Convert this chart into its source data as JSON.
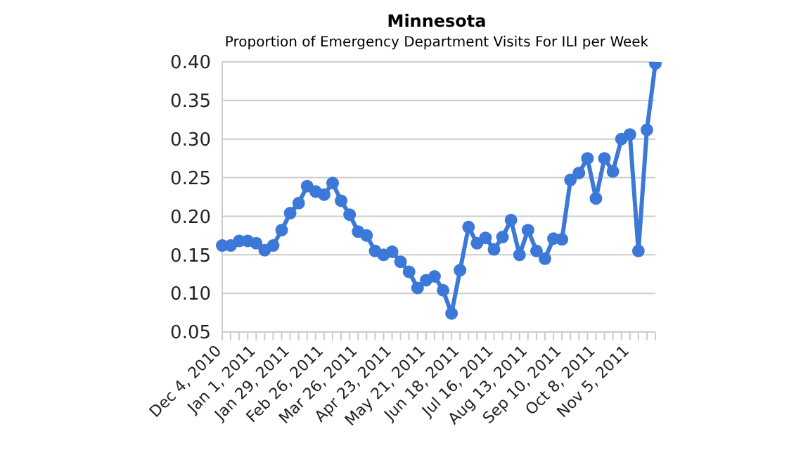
{
  "chart_data": {
    "type": "line",
    "title": "Minnesota",
    "subtitle": "Proportion of Emergency Department Visits For ILI per Week",
    "categories": [
      "Dec 4, 2010",
      null,
      null,
      null,
      "Jan 1, 2011",
      null,
      null,
      null,
      "Jan 29, 2011",
      null,
      null,
      null,
      "Feb 26, 2011",
      null,
      null,
      null,
      "Mar 26, 2011",
      null,
      null,
      null,
      "Apr 23, 2011",
      null,
      null,
      null,
      "May 21, 2011",
      null,
      null,
      null,
      "Jun 18, 2011",
      null,
      null,
      null,
      "Jul 16, 2011",
      null,
      null,
      null,
      "Aug 13, 2011",
      null,
      null,
      null,
      "Sep 10, 2011",
      null,
      null,
      null,
      "Oct 8, 2011",
      null,
      null,
      null,
      "Nov 5, 2011",
      null,
      null,
      null
    ],
    "series": [
      {
        "color": "#3c78d8",
        "values": [
          0.162,
          0.162,
          0.168,
          0.168,
          0.165,
          0.156,
          0.162,
          0.182,
          0.204,
          0.217,
          0.239,
          0.232,
          0.228,
          0.243,
          0.22,
          0.202,
          0.18,
          0.175,
          0.155,
          0.15,
          0.154,
          0.141,
          0.128,
          0.107,
          0.117,
          0.122,
          0.104,
          0.074,
          0.13,
          0.186,
          0.165,
          0.172,
          0.157,
          0.173,
          0.195,
          0.15,
          0.182,
          0.155,
          0.145,
          0.171,
          0.17,
          0.247,
          0.256,
          0.275,
          0.223,
          0.275,
          0.258,
          0.3,
          0.306,
          0.155,
          0.312,
          0.398
        ]
      }
    ],
    "ylim": [
      0.05,
      0.4
    ],
    "yticks": [
      {
        "value": 0.05,
        "label": "0.05"
      },
      {
        "value": 0.1,
        "label": "0.10"
      },
      {
        "value": 0.15,
        "label": "0.15"
      },
      {
        "value": 0.2,
        "label": "0.20"
      },
      {
        "value": 0.25,
        "label": "0.25"
      },
      {
        "value": 0.3,
        "label": "0.30"
      },
      {
        "value": 0.35,
        "label": "0.35"
      },
      {
        "value": 0.4,
        "label": "0.40"
      }
    ],
    "grid": "y",
    "legend": false,
    "marker": "circle",
    "line_style": "solid"
  }
}
